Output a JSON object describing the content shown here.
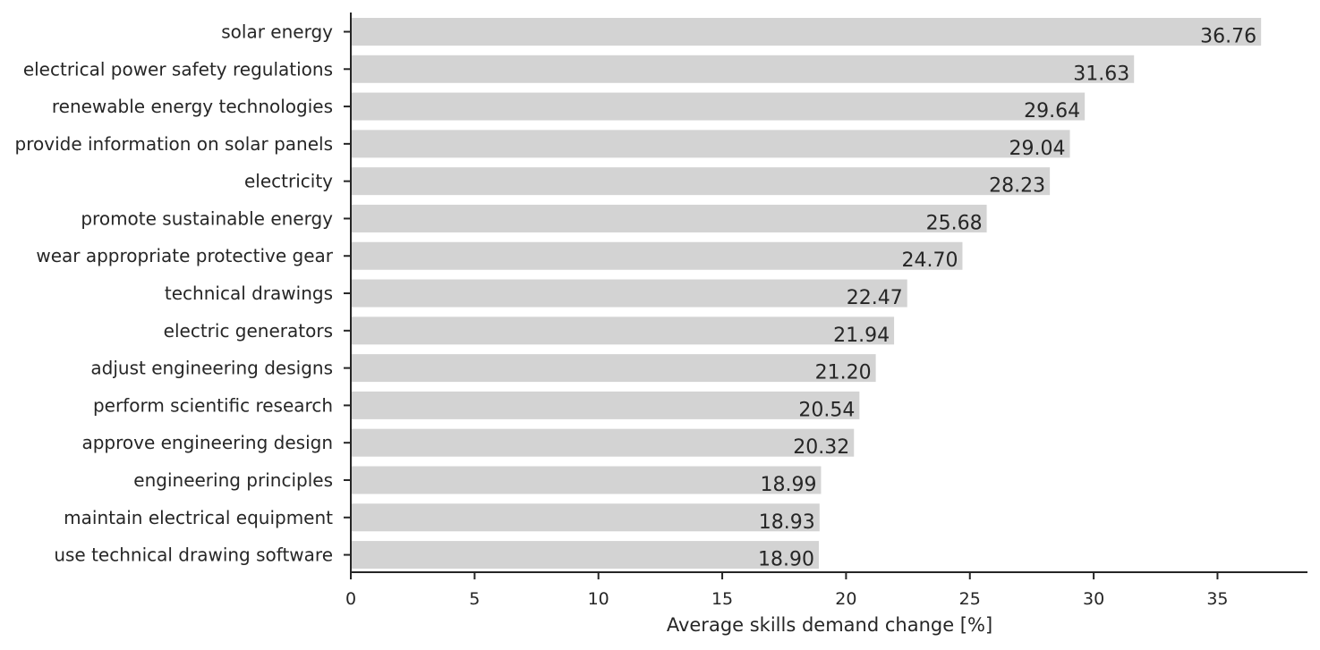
{
  "chart_data": {
    "type": "bar",
    "orientation": "horizontal",
    "categories": [
      "solar energy",
      "electrical power safety regulations",
      "renewable energy technologies",
      "provide information on solar panels",
      "electricity",
      "promote sustainable energy",
      "wear appropriate protective gear",
      "technical drawings",
      "electric generators",
      "adjust engineering designs",
      "perform scientific research",
      "approve engineering design",
      "engineering principles",
      "maintain electrical equipment",
      "use technical drawing software"
    ],
    "values": [
      36.76,
      31.63,
      29.64,
      29.04,
      28.23,
      25.68,
      24.7,
      22.47,
      21.94,
      21.2,
      20.54,
      20.32,
      18.99,
      18.93,
      18.9
    ],
    "data_labels": [
      "36.76",
      "31.63",
      "29.64",
      "29.04",
      "28.23",
      "25.68",
      "24.70",
      "22.47",
      "21.94",
      "21.20",
      "20.54",
      "20.32",
      "18.99",
      "18.93",
      "18.90"
    ],
    "title": "",
    "xlabel": "Average skills demand change [%]",
    "ylabel": "",
    "xlim": [
      0,
      38.6
    ],
    "xticks": [
      0,
      5,
      10,
      15,
      20,
      25,
      30,
      35
    ],
    "xtick_labels": [
      "0",
      "5",
      "10",
      "15",
      "20",
      "25",
      "30",
      "35"
    ],
    "grid": false,
    "legend": "none",
    "bar_color": "#d3d3d3",
    "axis_color": "#262626"
  }
}
